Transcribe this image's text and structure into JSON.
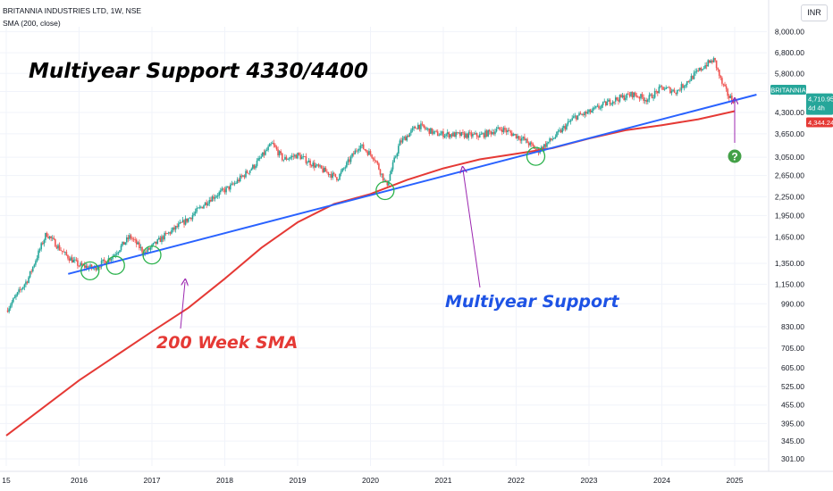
{
  "header": {
    "title": "BRITANNIA INDUSTRIES LTD, 1W, NSE",
    "indicator": "SMA (200, close)"
  },
  "currency_button": "INR",
  "colors": {
    "up_candle": "#26a69a",
    "down_candle": "#ef5350",
    "sma": "#e53935",
    "trendline": "#2962ff",
    "circle": "#2bb24c",
    "annotation_arrow": "#9c27b0",
    "title_text": "#000000",
    "sma_label": "#e53935",
    "support_label": "#1e53e5",
    "question_badge": "#43a047"
  },
  "chart_data": {
    "type": "candlestick",
    "title": "Multiyear Support 4330/4400",
    "instrument": "BRITANNIA INDUSTRIES LTD",
    "interval": "1W",
    "exchange": "NSE",
    "y_scale": "log",
    "ylim": [
      285,
      8300
    ],
    "xlim": [
      2015.0,
      2025.35
    ],
    "y_ticks": [
      "301.00",
      "345.00",
      "395.00",
      "455.00",
      "525.00",
      "605.00",
      "705.00",
      "830.00",
      "990.00",
      "1,150.00",
      "1,350.00",
      "1,650.00",
      "1,950.00",
      "2,250.00",
      "2,650.00",
      "3,050.00",
      "3,650.00",
      "4,300.00",
      "5,050.00",
      "5,800.00",
      "6,800.00",
      "8,000.00"
    ],
    "y_tick_values": [
      301,
      345,
      395,
      455,
      525,
      605,
      705,
      830,
      990,
      1150,
      1350,
      1650,
      1950,
      2250,
      2650,
      3050,
      3650,
      4300,
      5050,
      5800,
      6800,
      8000
    ],
    "x_ticks": [
      "15",
      "2016",
      "2017",
      "2018",
      "2019",
      "2020",
      "2021",
      "2022",
      "2023",
      "2024",
      "2025"
    ],
    "x_tick_values": [
      2015.0,
      2016.0,
      2017.0,
      2018.0,
      2019.0,
      2020.0,
      2021.0,
      2022.0,
      2023.0,
      2024.0,
      2025.0
    ],
    "price_path": [
      [
        2015.0,
        940
      ],
      [
        2015.3,
        1200
      ],
      [
        2015.55,
        1700
      ],
      [
        2015.8,
        1450
      ],
      [
        2016.0,
        1330
      ],
      [
        2016.2,
        1300
      ],
      [
        2016.45,
        1420
      ],
      [
        2016.7,
        1660
      ],
      [
        2016.9,
        1460
      ],
      [
        2017.15,
        1650
      ],
      [
        2017.5,
        1900
      ],
      [
        2017.8,
        2220
      ],
      [
        2018.1,
        2450
      ],
      [
        2018.4,
        2850
      ],
      [
        2018.65,
        3380
      ],
      [
        2018.8,
        3000
      ],
      [
        2019.0,
        3100
      ],
      [
        2019.3,
        2800
      ],
      [
        2019.55,
        2600
      ],
      [
        2019.7,
        2950
      ],
      [
        2019.85,
        3350
      ],
      [
        2020.05,
        3050
      ],
      [
        2020.22,
        2450
      ],
      [
        2020.4,
        3400
      ],
      [
        2020.65,
        3900
      ],
      [
        2020.9,
        3650
      ],
      [
        2021.2,
        3620
      ],
      [
        2021.5,
        3600
      ],
      [
        2021.8,
        3800
      ],
      [
        2022.1,
        3500
      ],
      [
        2022.3,
        3200
      ],
      [
        2022.55,
        3600
      ],
      [
        2022.8,
        4150
      ],
      [
        2023.0,
        4300
      ],
      [
        2023.3,
        4700
      ],
      [
        2023.6,
        4950
      ],
      [
        2023.8,
        4750
      ],
      [
        2024.0,
        5200
      ],
      [
        2024.2,
        5050
      ],
      [
        2024.4,
        5600
      ],
      [
        2024.6,
        6200
      ],
      [
        2024.72,
        6450
      ],
      [
        2024.82,
        5400
      ],
      [
        2024.92,
        4850
      ],
      [
        2025.0,
        4710.95
      ]
    ],
    "sma200": {
      "name": "SMA (200, close)",
      "points": [
        [
          2015.0,
          360
        ],
        [
          2016.0,
          550
        ],
        [
          2017.0,
          800
        ],
        [
          2017.5,
          960
        ],
        [
          2018.0,
          1200
        ],
        [
          2018.5,
          1520
        ],
        [
          2019.0,
          1850
        ],
        [
          2019.5,
          2130
        ],
        [
          2020.0,
          2300
        ],
        [
          2020.5,
          2560
        ],
        [
          2021.0,
          2800
        ],
        [
          2021.5,
          3000
        ],
        [
          2022.0,
          3130
        ],
        [
          2022.5,
          3270
        ],
        [
          2023.0,
          3520
        ],
        [
          2023.5,
          3750
        ],
        [
          2024.0,
          3900
        ],
        [
          2024.5,
          4080
        ],
        [
          2025.0,
          4344.24
        ]
      ]
    },
    "trendline": {
      "name": "Multiyear Support",
      "start": [
        2015.85,
        1245
      ],
      "end": [
        2025.3,
        4930
      ]
    },
    "support_circles": [
      {
        "x": 2016.15,
        "y": 1275
      },
      {
        "x": 2016.5,
        "y": 1330
      },
      {
        "x": 2017.0,
        "y": 1440
      },
      {
        "x": 2020.2,
        "y": 2360
      },
      {
        "x": 2022.27,
        "y": 3070
      }
    ],
    "last_price": {
      "label": "BRITANNIA",
      "value": "4,710.95",
      "countdown": "4d 4h"
    },
    "sma_value": "4,344.24",
    "annotations": {
      "sma_label": "200 Week SMA",
      "support_label": "Multiyear Support",
      "question_mark": "?"
    }
  }
}
